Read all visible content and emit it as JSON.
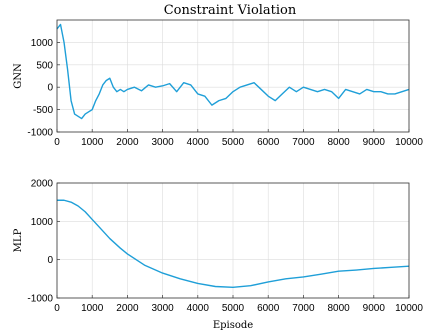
{
  "figure": {
    "title": "Constraint Violation"
  },
  "chart_data": [
    {
      "type": "line",
      "ylabel": "GNN",
      "xlabel": "",
      "xlim": [
        0,
        10000
      ],
      "ylim": [
        -1000,
        1500
      ],
      "xticks": [
        0,
        1000,
        2000,
        3000,
        4000,
        5000,
        6000,
        7000,
        8000,
        9000,
        10000
      ],
      "yticks": [
        -1000,
        -500,
        0,
        500,
        1000
      ],
      "grid": true,
      "color": "#1f9fd8",
      "series": [
        {
          "x": [
            0,
            100,
            200,
            300,
            400,
            500,
            600,
            700,
            800,
            900,
            1000,
            1100,
            1200,
            1300,
            1400,
            1500,
            1600,
            1700,
            1800,
            1900,
            2000,
            2200,
            2400,
            2600,
            2800,
            3000,
            3200,
            3400,
            3600,
            3800,
            4000,
            4200,
            4400,
            4600,
            4800,
            5000,
            5200,
            5400,
            5600,
            5800,
            6000,
            6200,
            6400,
            6600,
            6800,
            7000,
            7200,
            7400,
            7600,
            7800,
            8000,
            8200,
            8400,
            8600,
            8800,
            9000,
            9200,
            9400,
            9600,
            9800,
            10000
          ],
          "values": [
            1300,
            1400,
            1000,
            400,
            -300,
            -600,
            -650,
            -700,
            -600,
            -550,
            -500,
            -300,
            -150,
            50,
            150,
            200,
            0,
            -100,
            -50,
            -100,
            -50,
            0,
            -80,
            50,
            0,
            30,
            80,
            -100,
            100,
            50,
            -150,
            -200,
            -400,
            -300,
            -250,
            -100,
            0,
            50,
            100,
            -50,
            -200,
            -300,
            -150,
            0,
            -100,
            0,
            -50,
            -100,
            -50,
            -100,
            -250,
            -50,
            -100,
            -150,
            -50,
            -100,
            -100,
            -150,
            -150,
            -100,
            -50
          ]
        }
      ]
    },
    {
      "type": "line",
      "ylabel": "MLP",
      "xlabel": "Episode",
      "xlim": [
        0,
        10000
      ],
      "ylim": [
        -1000,
        2000
      ],
      "xticks": [
        0,
        1000,
        2000,
        3000,
        4000,
        5000,
        6000,
        7000,
        8000,
        9000,
        10000
      ],
      "yticks": [
        -1000,
        0,
        1000,
        2000
      ],
      "grid": true,
      "color": "#1f9fd8",
      "series": [
        {
          "x": [
            0,
            200,
            400,
            600,
            800,
            1000,
            1200,
            1500,
            1800,
            2000,
            2500,
            3000,
            3500,
            4000,
            4500,
            5000,
            5500,
            6000,
            6500,
            7000,
            7500,
            8000,
            8500,
            9000,
            9500,
            10000
          ],
          "values": [
            1550,
            1550,
            1500,
            1400,
            1250,
            1050,
            850,
            550,
            300,
            150,
            -150,
            -350,
            -500,
            -620,
            -700,
            -720,
            -680,
            -580,
            -500,
            -450,
            -380,
            -300,
            -270,
            -230,
            -200,
            -170
          ]
        }
      ]
    }
  ]
}
